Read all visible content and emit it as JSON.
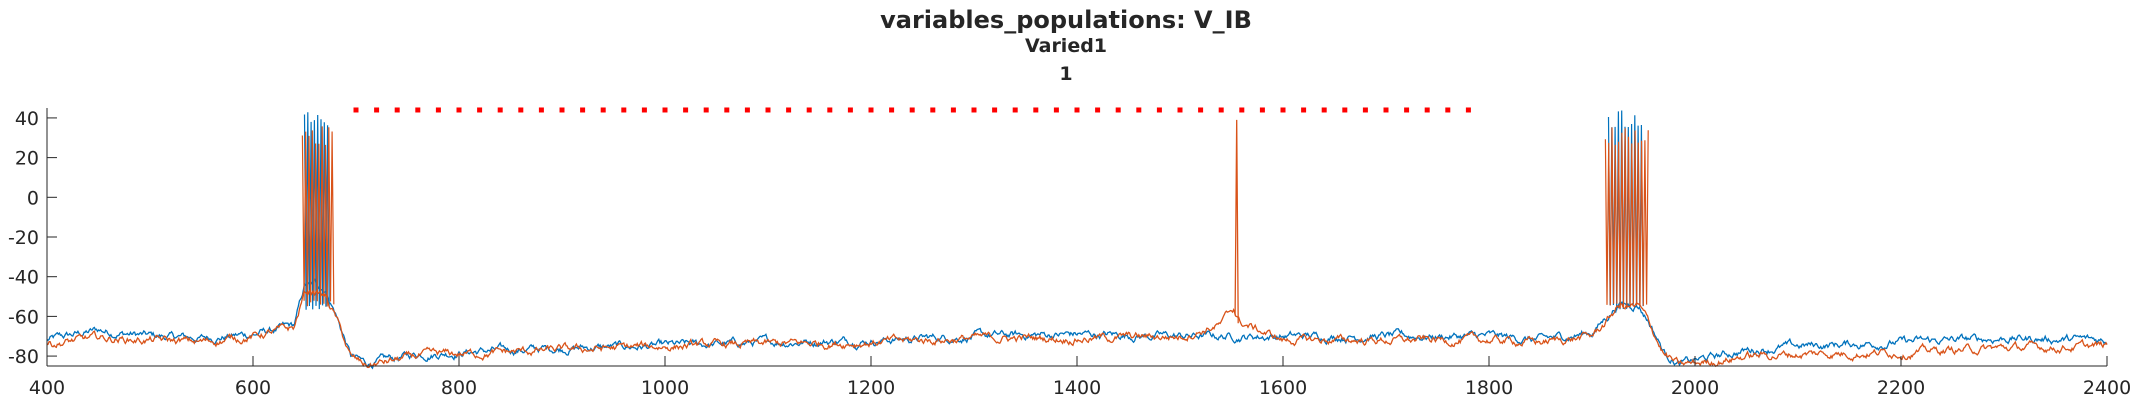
{
  "chart_data": {
    "type": "line",
    "title": "variables_populations: V_IB",
    "subtitle": "Varied1",
    "subtitle2": "1",
    "xlabel": "",
    "ylabel": "",
    "xlim": [
      400,
      2400
    ],
    "ylim": [
      -85,
      45
    ],
    "xticks": [
      400,
      600,
      800,
      1000,
      1200,
      1400,
      1600,
      1800,
      2000,
      2200,
      2400
    ],
    "yticks": [
      -80,
      -60,
      -40,
      -20,
      0,
      20,
      40
    ],
    "grid": false,
    "marker_row": {
      "y": 44,
      "x_start": 700,
      "x_end": 1780,
      "step": 20,
      "color": "#ff0000"
    },
    "series": [
      {
        "color": "#0072bd",
        "baseline": [
          [
            400,
            -72
          ],
          [
            450,
            -67
          ],
          [
            500,
            -70
          ],
          [
            550,
            -71
          ],
          [
            600,
            -69
          ],
          [
            640,
            -65
          ],
          [
            650,
            -45
          ],
          [
            660,
            -44
          ],
          [
            670,
            -46
          ],
          [
            680,
            -58
          ],
          [
            695,
            -80
          ],
          [
            710,
            -84
          ],
          [
            760,
            -79
          ],
          [
            800,
            -78
          ],
          [
            900,
            -76
          ],
          [
            1000,
            -75
          ],
          [
            1100,
            -73
          ],
          [
            1200,
            -72
          ],
          [
            1300,
            -70
          ],
          [
            1400,
            -69
          ],
          [
            1500,
            -70
          ],
          [
            1550,
            -70
          ],
          [
            1600,
            -70
          ],
          [
            1700,
            -70
          ],
          [
            1800,
            -70
          ],
          [
            1850,
            -72
          ],
          [
            1900,
            -68
          ],
          [
            1915,
            -60
          ],
          [
            1925,
            -54
          ],
          [
            1945,
            -54
          ],
          [
            1955,
            -62
          ],
          [
            1970,
            -78
          ],
          [
            1985,
            -84
          ],
          [
            2050,
            -77
          ],
          [
            2100,
            -75
          ],
          [
            2200,
            -73
          ],
          [
            2300,
            -71
          ],
          [
            2400,
            -72
          ]
        ],
        "bursts": [
          {
            "x_start": 650,
            "x_end": 675,
            "peak": 44,
            "trough": -54,
            "step": 1.6
          },
          {
            "x_start": 1916,
            "x_end": 1950,
            "peak": 44,
            "trough": -54,
            "step": 1.6
          }
        ]
      },
      {
        "color": "#d95319",
        "baseline": [
          [
            400,
            -74
          ],
          [
            450,
            -71
          ],
          [
            500,
            -72
          ],
          [
            550,
            -73
          ],
          [
            600,
            -70
          ],
          [
            640,
            -66
          ],
          [
            650,
            -48
          ],
          [
            660,
            -47
          ],
          [
            670,
            -50
          ],
          [
            680,
            -60
          ],
          [
            695,
            -81
          ],
          [
            710,
            -85
          ],
          [
            760,
            -80
          ],
          [
            800,
            -79
          ],
          [
            900,
            -77
          ],
          [
            1000,
            -75
          ],
          [
            1100,
            -74
          ],
          [
            1200,
            -73
          ],
          [
            1300,
            -71
          ],
          [
            1400,
            -71
          ],
          [
            1500,
            -70
          ],
          [
            1540,
            -64
          ],
          [
            1552,
            -56
          ],
          [
            1558,
            -63
          ],
          [
            1600,
            -72
          ],
          [
            1700,
            -72
          ],
          [
            1800,
            -72
          ],
          [
            1850,
            -73
          ],
          [
            1900,
            -70
          ],
          [
            1915,
            -62
          ],
          [
            1925,
            -55
          ],
          [
            1945,
            -55
          ],
          [
            1955,
            -63
          ],
          [
            1970,
            -79
          ],
          [
            1985,
            -85
          ],
          [
            2050,
            -80
          ],
          [
            2100,
            -79
          ],
          [
            2200,
            -78
          ],
          [
            2300,
            -76
          ],
          [
            2400,
            -75
          ]
        ],
        "bursts": [
          {
            "x_start": 648,
            "x_end": 680,
            "peak": 36,
            "trough": -52,
            "step": 1.6
          },
          {
            "x_start": 1913,
            "x_end": 1955,
            "peak": 36,
            "trough": -53,
            "step": 1.6
          }
        ],
        "spikes": [
          [
            1555,
            39
          ]
        ]
      }
    ]
  }
}
